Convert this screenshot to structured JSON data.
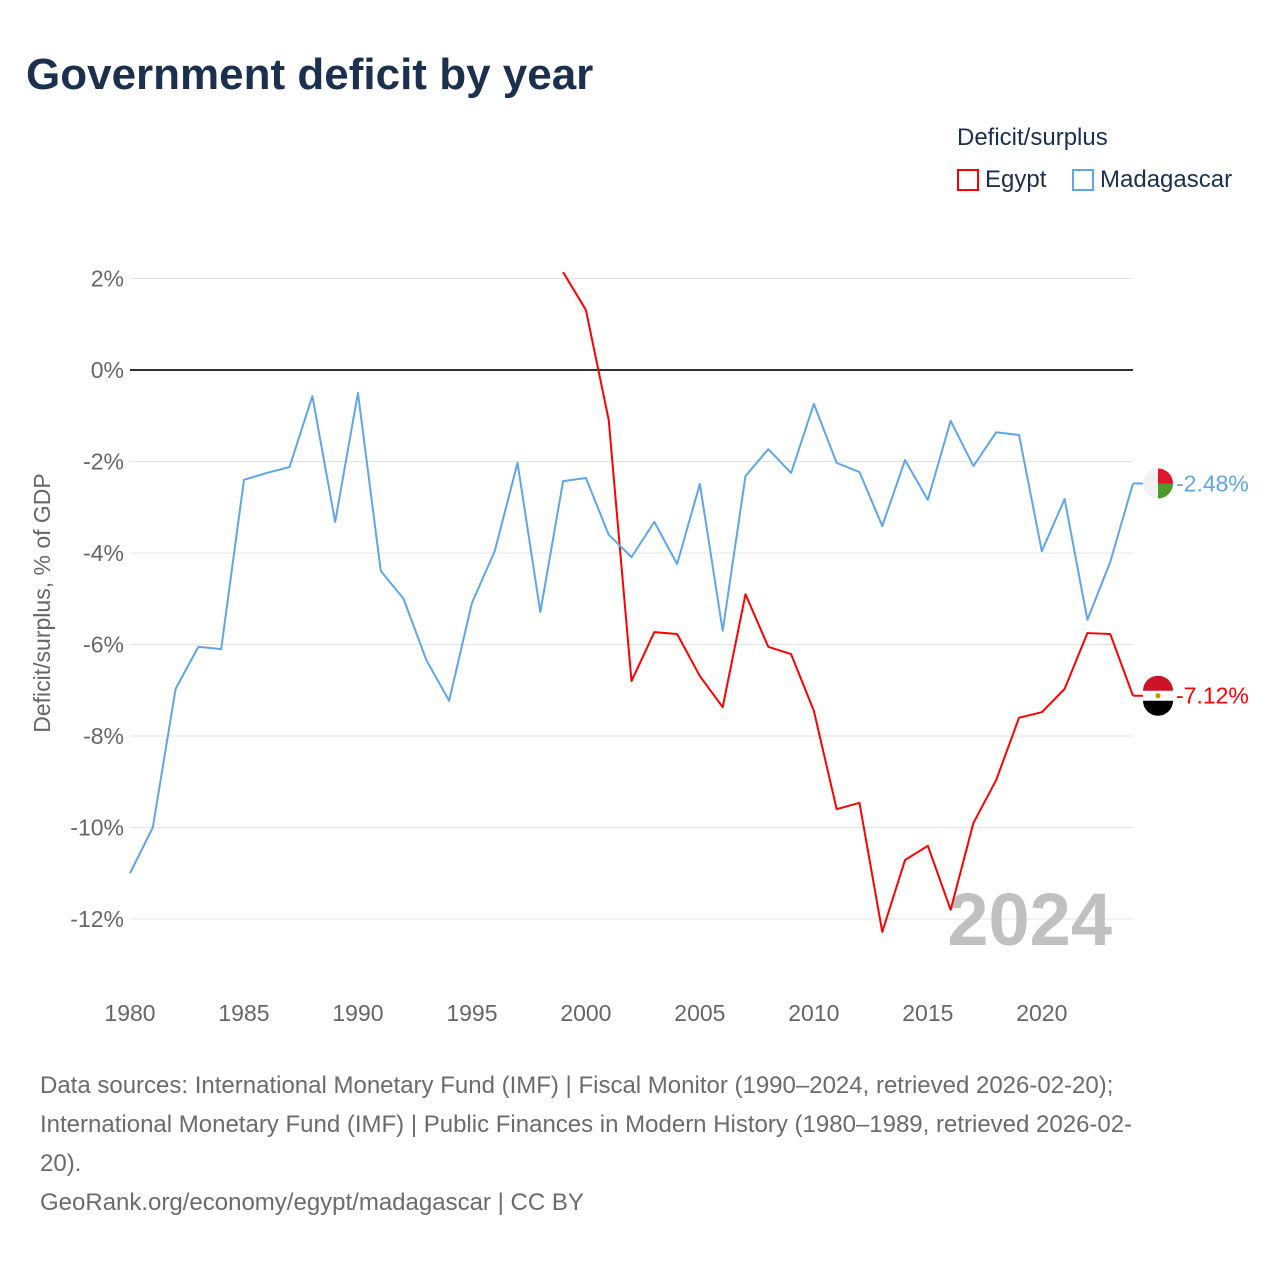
{
  "chart_data": {
    "type": "line",
    "title": "Government deficit by year",
    "ylabel": "Deficit/surplus, % of GDP",
    "xlabel": "",
    "xlim": [
      1980,
      2024
    ],
    "ylim": [
      -13,
      2.5
    ],
    "x_ticks": [
      1980,
      1985,
      1990,
      1995,
      2000,
      2005,
      2010,
      2015,
      2020
    ],
    "y_ticks": [
      2,
      0,
      -2,
      -4,
      -6,
      -8,
      -10,
      -12
    ],
    "y_tick_labels": [
      "2%",
      "0%",
      "-2%",
      "-4%",
      "-6%",
      "-8%",
      "-10%",
      "-12%"
    ],
    "grid": true,
    "legend": {
      "title": "Deficit/surplus",
      "placement": "top-right"
    },
    "year_watermark": "2024",
    "series": [
      {
        "name": "Egypt",
        "color": "#ff0000",
        "end_label": "-7.12%",
        "x": [
          1999,
          2000,
          2001,
          2002,
          2003,
          2004,
          2005,
          2006,
          2007,
          2008,
          2009,
          2010,
          2011,
          2012,
          2013,
          2014,
          2015,
          2016,
          2017,
          2018,
          2019,
          2020,
          2021,
          2022,
          2023,
          2024
        ],
        "values": [
          2.14,
          1.31,
          -1.09,
          -6.8,
          -5.73,
          -5.77,
          -6.69,
          -7.37,
          -4.9,
          -6.05,
          -6.21,
          -7.45,
          -9.6,
          -9.46,
          -12.28,
          -10.71,
          -10.4,
          -11.8,
          -9.9,
          -8.96,
          -7.6,
          -7.48,
          -6.97,
          -5.75,
          -5.77,
          -7.12
        ]
      },
      {
        "name": "Madagascar",
        "color": "#5ea6ea",
        "end_label": "-2.48%",
        "x": [
          1980,
          1981,
          1982,
          1983,
          1984,
          1985,
          1986,
          1987,
          1988,
          1989,
          1990,
          1991,
          1992,
          1993,
          1994,
          1995,
          1996,
          1997,
          1998,
          1999,
          2000,
          2001,
          2002,
          2003,
          2004,
          2005,
          2006,
          2007,
          2008,
          2009,
          2010,
          2011,
          2012,
          2013,
          2014,
          2015,
          2016,
          2017,
          2018,
          2019,
          2020,
          2021,
          2022,
          2023,
          2024
        ],
        "values": [
          -11.0,
          -10.0,
          -6.97,
          -6.05,
          -6.1,
          -2.4,
          -2.25,
          -2.12,
          -0.57,
          -3.32,
          -0.5,
          -4.39,
          -5.0,
          -6.34,
          -7.23,
          -5.09,
          -3.96,
          -2.03,
          -5.29,
          -2.43,
          -2.36,
          -3.6,
          -4.09,
          -3.32,
          -4.24,
          -2.49,
          -5.7,
          -2.32,
          -1.73,
          -2.25,
          -0.74,
          -2.03,
          -2.23,
          -3.41,
          -1.97,
          -2.84,
          -1.11,
          -2.1,
          -1.36,
          -1.42,
          -3.96,
          -2.82,
          -5.46,
          -4.2,
          -2.48
        ]
      }
    ]
  },
  "footer": {
    "sources_line1": "Data sources: International Monetary Fund (IMF) | Fiscal Monitor (1990–2024, retrieved 2026-02-20);",
    "sources_line2": "International Monetary Fund (IMF) | Public Finances in Modern History (1980–1989, retrieved 2026-02-",
    "sources_line3": "20).",
    "credit": "GeoRank.org/economy/egypt/madagascar | CC BY"
  }
}
